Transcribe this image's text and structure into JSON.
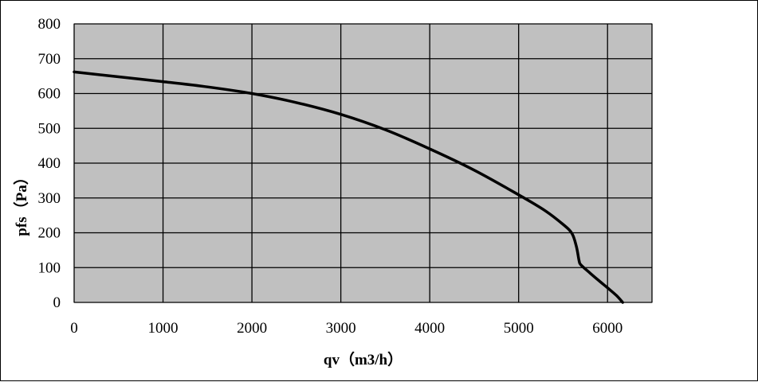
{
  "chart_data": {
    "type": "line",
    "xlabel": "qv（m3/h）",
    "ylabel": "pfs（Pa）",
    "xlim": [
      0,
      6500
    ],
    "ylim": [
      0,
      800
    ],
    "xticks": [
      "0",
      "1000",
      "2000",
      "3000",
      "4000",
      "5000",
      "6000"
    ],
    "yticks": [
      "0",
      "100",
      "200",
      "300",
      "400",
      "500",
      "600",
      "700",
      "800"
    ],
    "grid": true,
    "plot_background": "#c0c0c0",
    "line_color": "#000000",
    "series": [
      {
        "x": [
          0,
          500,
          1000,
          1500,
          2000,
          2500,
          3000,
          3500,
          4000,
          4500,
          5000,
          5300,
          5500,
          5600,
          5650,
          5680,
          5700,
          5800,
          5900,
          6000,
          6100,
          6170
        ],
        "y": [
          662,
          648,
          634,
          619,
          600,
          574,
          540,
          496,
          441,
          380,
          309,
          263,
          224,
          198,
          160,
          120,
          108,
          85,
          63,
          42,
          20,
          0
        ]
      }
    ]
  }
}
